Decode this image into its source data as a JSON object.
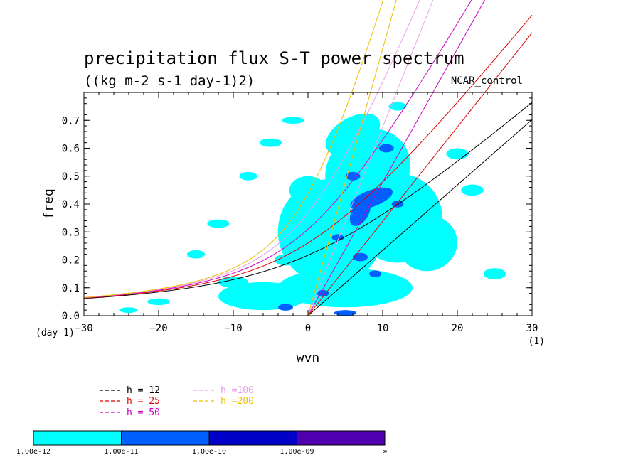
{
  "chart_data": {
    "type": "heatmap",
    "title": "precipitation flux S-T power spectrum",
    "subtitle": "((kg m-2 s-1 day-1)2)",
    "run_label": "NCAR_control",
    "xlabel": "wvn",
    "ylabel": "freq",
    "x_unit": "(1)",
    "y_unit": "(day-1)",
    "xlim": [
      -30,
      30
    ],
    "ylim": [
      0,
      0.8
    ],
    "x_ticks": [
      -30,
      -20,
      -10,
      0,
      10,
      20,
      30
    ],
    "x_tick_labels": [
      "−30",
      "−20",
      "−10",
      "0",
      "10",
      "20",
      "30"
    ],
    "y_ticks": [
      0,
      0.1,
      0.2,
      0.3,
      0.4,
      0.5,
      0.6,
      0.7
    ],
    "y_tick_labels": [
      "0.0",
      "0.1",
      "0.2",
      "0.3",
      "0.4",
      "0.5",
      "0.6",
      "0.7"
    ],
    "grid": false,
    "legend_placement": "bottom-left",
    "dispersion_curves": [
      {
        "label": "h = 12",
        "h": 12,
        "color": "#000000"
      },
      {
        "label": "h = 25",
        "h": 25,
        "color": "#e00000"
      },
      {
        "label": "h = 50",
        "h": 50,
        "color": "#d000c0"
      },
      {
        "label": "h =100",
        "h": 100,
        "color": "#e8a0e8"
      },
      {
        "label": "h =200",
        "h": 200,
        "color": "#f0c000"
      }
    ],
    "colorbar": {
      "levels": [
        "1.00e-12",
        "1.00e-11",
        "1.00e-10",
        "1.00e-09",
        "∞"
      ],
      "colors": [
        "#00ffff",
        "#0060ff",
        "#0000c8",
        "#5000b0"
      ]
    },
    "contour_regions": [
      {
        "level": 0,
        "cx": 3,
        "cy": 0.3,
        "rx": 7,
        "ry": 0.19,
        "rot": 30
      },
      {
        "level": 0,
        "cx": 8,
        "cy": 0.52,
        "rx": 6,
        "ry": 0.14,
        "rot": 40
      },
      {
        "level": 0,
        "cx": 12,
        "cy": 0.35,
        "rx": 6,
        "ry": 0.16,
        "rot": 20
      },
      {
        "level": 0,
        "cx": 5,
        "cy": 0.1,
        "rx": 9,
        "ry": 0.07,
        "rot": 0
      },
      {
        "level": 0,
        "cx": -6,
        "cy": 0.07,
        "rx": 6,
        "ry": 0.05,
        "rot": 0
      },
      {
        "level": 0,
        "cx": 16,
        "cy": 0.26,
        "rx": 4,
        "ry": 0.1,
        "rot": 10
      },
      {
        "level": 0,
        "cx": 6,
        "cy": 0.65,
        "rx": 4,
        "ry": 0.06,
        "rot": 30
      },
      {
        "level": 0,
        "cx": 0,
        "cy": 0.45,
        "rx": 2.5,
        "ry": 0.05,
        "rot": 0
      },
      {
        "level": 0,
        "cx": -3,
        "cy": 0.2,
        "rx": 1.5,
        "ry": 0.02,
        "rot": 0
      },
      {
        "level": 0,
        "cx": -10,
        "cy": 0.12,
        "rx": 2,
        "ry": 0.02,
        "rot": 0
      },
      {
        "level": 0,
        "cx": -15,
        "cy": 0.22,
        "rx": 1.2,
        "ry": 0.015,
        "rot": 0
      },
      {
        "level": 0,
        "cx": -12,
        "cy": 0.33,
        "rx": 1.5,
        "ry": 0.015,
        "rot": 0
      },
      {
        "level": 0,
        "cx": -8,
        "cy": 0.5,
        "rx": 1.2,
        "ry": 0.015,
        "rot": 0
      },
      {
        "level": 0,
        "cx": -5,
        "cy": 0.62,
        "rx": 1.5,
        "ry": 0.015,
        "rot": 0
      },
      {
        "level": 0,
        "cx": -20,
        "cy": 0.05,
        "rx": 1.5,
        "ry": 0.012,
        "rot": 0
      },
      {
        "level": 0,
        "cx": 22,
        "cy": 0.45,
        "rx": 1.5,
        "ry": 0.02,
        "rot": 0
      },
      {
        "level": 0,
        "cx": 25,
        "cy": 0.15,
        "rx": 1.5,
        "ry": 0.02,
        "rot": 0
      },
      {
        "level": 0,
        "cx": 20,
        "cy": 0.58,
        "rx": 1.5,
        "ry": 0.02,
        "rot": 0
      },
      {
        "level": 0,
        "cx": 12,
        "cy": 0.75,
        "rx": 1.2,
        "ry": 0.015,
        "rot": 0
      },
      {
        "level": 0,
        "cx": -2,
        "cy": 0.7,
        "rx": 1.5,
        "ry": 0.012,
        "rot": 0
      },
      {
        "level": 0,
        "cx": -24,
        "cy": 0.02,
        "rx": 1.2,
        "ry": 0.01,
        "rot": 0
      },
      {
        "level": 1,
        "cx": 8.5,
        "cy": 0.42,
        "rx": 3,
        "ry": 0.03,
        "rot": 20
      },
      {
        "level": 1,
        "cx": 7,
        "cy": 0.37,
        "rx": 2,
        "ry": 0.03,
        "rot": 60
      },
      {
        "level": 1,
        "cx": 7,
        "cy": 0.21,
        "rx": 1,
        "ry": 0.015,
        "rot": 0
      },
      {
        "level": 1,
        "cx": 6,
        "cy": 0.5,
        "rx": 1,
        "ry": 0.015,
        "rot": 0
      },
      {
        "level": 1,
        "cx": 10.5,
        "cy": 0.6,
        "rx": 1,
        "ry": 0.015,
        "rot": 0
      },
      {
        "level": 1,
        "cx": 12,
        "cy": 0.4,
        "rx": 0.8,
        "ry": 0.012,
        "rot": 0
      },
      {
        "level": 1,
        "cx": 4,
        "cy": 0.28,
        "rx": 0.8,
        "ry": 0.012,
        "rot": 0
      },
      {
        "level": 1,
        "cx": 2,
        "cy": 0.08,
        "rx": 0.8,
        "ry": 0.012,
        "rot": 0
      },
      {
        "level": 1,
        "cx": -3,
        "cy": 0.03,
        "rx": 1,
        "ry": 0.012,
        "rot": 0
      },
      {
        "level": 1,
        "cx": 5,
        "cy": 0.01,
        "rx": 1.5,
        "ry": 0.01,
        "rot": 0
      },
      {
        "level": 1,
        "cx": 9,
        "cy": 0.15,
        "rx": 0.8,
        "ry": 0.012,
        "rot": 0
      }
    ]
  }
}
